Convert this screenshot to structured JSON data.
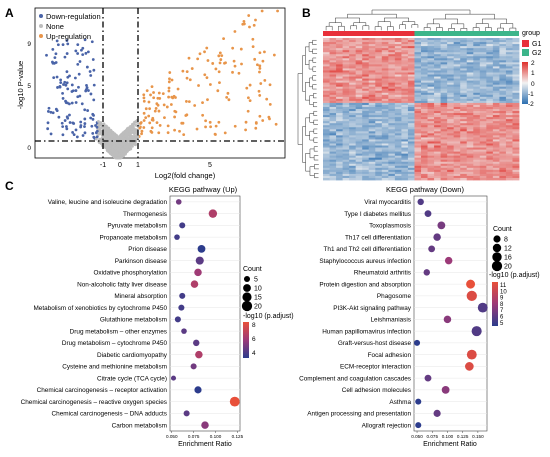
{
  "panel_labels": {
    "a": "A",
    "b": "B",
    "c": "C"
  },
  "colors": {
    "down": "#4a64a8",
    "none": "#bdbdbd",
    "up": "#e8954a",
    "heat_low": "#2c6fb0",
    "heat_mid": "#f2f2f2",
    "heat_high": "#e0302b",
    "g1": "#e8303a",
    "g2": "#3cb58a",
    "padj_low": "#2c3c8c",
    "padj_mid": "#9c3a78",
    "padj_high": "#e8503a"
  },
  "chart_data": [
    {
      "type": "scatter",
      "name": "volcano",
      "xlabel": "Log2(fold change)",
      "ylabel": "-log10 P-value",
      "xlim": [
        -4,
        8
      ],
      "ylim": [
        0,
        10
      ],
      "xticks": [
        "-1",
        "0",
        "1",
        "5"
      ],
      "yticks": [
        "0",
        "5",
        "9"
      ],
      "thresholds": {
        "x": [
          -1,
          1
        ],
        "y": 1.3
      },
      "legend": [
        "Down-regulation",
        "None",
        "Up-regulation"
      ],
      "legend_position": "top-left"
    },
    {
      "type": "heatmap",
      "name": "expression-heatmap",
      "rows": 70,
      "cols": 30,
      "groups": [
        "G1",
        "G2"
      ],
      "group_split": 0.45,
      "legend_title": "group",
      "colorbar_ticks": [
        "2",
        "1",
        "0",
        "-1",
        "-2"
      ],
      "color_range": [
        -2,
        2
      ]
    },
    {
      "type": "scatter",
      "name": "kegg-up",
      "title": "KEGG pathway (Up)",
      "xlabel": "Enrichment Ratio",
      "xlim": [
        0.048,
        0.128
      ],
      "xticks": [
        0.05,
        0.075,
        0.1,
        0.125
      ],
      "xtick_labels": [
        "0.050",
        "0.075",
        "0.100",
        "0.125"
      ],
      "size_legend": {
        "title": "Count",
        "values": [
          5,
          10,
          15,
          20
        ]
      },
      "color_legend": {
        "title": "-log10 (p.adjust)",
        "ticks": [
          8,
          6,
          4
        ]
      },
      "categories": [
        "Valine, leucine and isoleucine degradation",
        "Thermogenesis",
        "Pyruvate metabolism",
        "Propanoate metabolism",
        "Prion disease",
        "Parkinson disease",
        "Oxidative phosphorylation",
        "Non-alcoholic fatty liver disease",
        "Mineral absorption",
        "Metabolism of xenobiotics by cytochrome P450",
        "Glutathione metabolism",
        "Drug metabolism – other enzymes",
        "Drug metabolism – cytochrome P450",
        "Diabetic cardiomyopathy",
        "Cysteine and methionine metabolism",
        "Citrate cycle (TCA cycle)",
        "Chemical carcinogenesis – receptor activation",
        "Chemical carcinogenesis – reactive oxygen species",
        "Chemical carcinogenesis – DNA adducts",
        "Carbon metabolism"
      ],
      "x": [
        0.058,
        0.097,
        0.062,
        0.056,
        0.084,
        0.082,
        0.08,
        0.076,
        0.062,
        0.061,
        0.057,
        0.064,
        0.078,
        0.081,
        0.075,
        0.052,
        0.08,
        0.122,
        0.067,
        0.088
      ],
      "count": [
        4,
        12,
        5,
        4,
        10,
        11,
        9,
        9,
        5,
        5,
        5,
        4,
        6,
        9,
        5,
        3,
        8,
        18,
        5,
        9
      ],
      "padj": [
        5,
        6.5,
        4,
        4,
        3.5,
        4.5,
        6,
        6.5,
        4,
        4,
        4,
        4.5,
        4.5,
        6.5,
        5,
        4.5,
        3.5,
        8.3,
        4.5,
        5.5
      ]
    },
    {
      "type": "scatter",
      "name": "kegg-down",
      "title": "KEGG pathway (Down)",
      "xlabel": "Enrichment Ratio",
      "xlim": [
        0.045,
        0.165
      ],
      "xticks": [
        0.05,
        0.075,
        0.1,
        0.125,
        0.15
      ],
      "xtick_labels": [
        "0.050",
        "0.075",
        "0.100",
        "0.125",
        "0.150"
      ],
      "size_legend": {
        "title": "Count",
        "values": [
          8,
          12,
          16,
          20
        ]
      },
      "color_legend": {
        "title": "-log10 (p.adjust)",
        "ticks": [
          11,
          10,
          9,
          8,
          7,
          6,
          5
        ]
      },
      "categories": [
        "Viral myocarditis",
        "Type I diabetes mellitus",
        "Toxoplasmosis",
        "Th17 cell differentiation",
        "Th1 and Th2 cell differentiation",
        "Staphylococcus aureus infection",
        "Rheumatoid arthritis",
        "Protein digestion and absorption",
        "Phagosome",
        "PI3K-Akt signaling pathway",
        "Leishmaniasis",
        "Human papillomavirus infection",
        "Graft-versus-host disease",
        "Focal adhesion",
        "ECM-receptor interaction",
        "Complement and coagulation cascades",
        "Cell adhesion molecules",
        "Asthma",
        "Antigen processing and presentation",
        "Allograft rejection"
      ],
      "x": [
        0.056,
        0.068,
        0.09,
        0.083,
        0.074,
        0.102,
        0.066,
        0.138,
        0.14,
        0.158,
        0.1,
        0.148,
        0.05,
        0.14,
        0.136,
        0.068,
        0.097,
        0.052,
        0.083,
        0.052
      ],
      "count": [
        6,
        7,
        10,
        9,
        7,
        9,
        6,
        14,
        20,
        18,
        9,
        19,
        5,
        18,
        13,
        7,
        10,
        5,
        8,
        5
      ],
      "padj": [
        6,
        6,
        7,
        6.5,
        6.5,
        8,
        6.5,
        11,
        10.5,
        6,
        7.5,
        6,
        5,
        10.5,
        10.5,
        6.5,
        7.5,
        5,
        6.5,
        5
      ]
    }
  ]
}
